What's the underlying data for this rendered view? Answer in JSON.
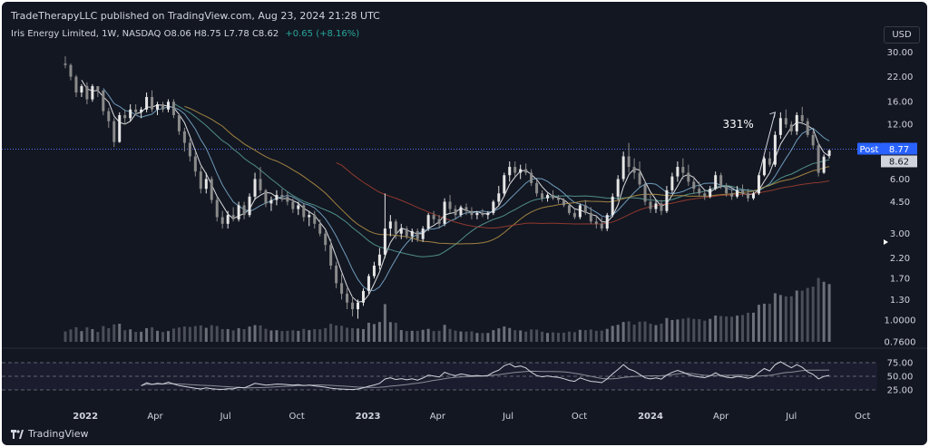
{
  "header": {
    "publisher": "TradeTherapyLLC published on TradingView.com, Aug 23, 2024 21:28 UTC"
  },
  "symbol": {
    "name": "Iris Energy Limited, 1W, NASDAQ",
    "open": "O8.06",
    "high": "H8.75",
    "low": "L7.78",
    "close": "C8.62",
    "change": "+0.65 (+8.16%)"
  },
  "currency_label": "USD",
  "brand_label": "TradingView",
  "colors": {
    "background": "#131722",
    "up": "#e6e6e6",
    "down": "#8a8a8a",
    "ma_fast": "#ffffff",
    "ma_mid": "#7fb3d5",
    "ma_slow": "#5aa39a",
    "ma_gold": "#b89545",
    "ma_red": "#a5402f",
    "post_badge": "#2962ff",
    "rsi_band": "#7e57c2"
  },
  "chart_data": {
    "type": "candlestick",
    "interval": "1W",
    "y_scale": "log",
    "y_ticks": [
      "30.00",
      "22.00",
      "16.00",
      "12.00",
      "8.77",
      "8.62",
      "6.00",
      "4.50",
      "3.00",
      "2.20",
      "1.70",
      "1.30",
      "1.0000",
      "0.7600"
    ],
    "x_ticks": [
      "2022",
      "Apr",
      "Jul",
      "Oct",
      "2023",
      "Apr",
      "Jul",
      "Oct",
      "2024",
      "Apr",
      "Jul",
      "Oct"
    ],
    "last_price": 8.62,
    "post_label": "Post",
    "post_price": "8.77",
    "post_price_value": 8.77,
    "annotation": "331%",
    "annotation_points": [
      {
        "date": "2024-05-20",
        "price": 6.3
      },
      {
        "date": "2024-06-10",
        "price": 14.0
      }
    ],
    "ohlc": [
      {
        "date": "2021-12-06",
        "o": 26.0,
        "h": 28.5,
        "l": 24.5,
        "c": 25.5
      },
      {
        "date": "2021-12-13",
        "o": 25.5,
        "h": 26.0,
        "l": 21.0,
        "c": 22.0
      },
      {
        "date": "2021-12-20",
        "o": 22.0,
        "h": 22.5,
        "l": 17.0,
        "c": 18.0
      },
      {
        "date": "2021-12-27",
        "o": 18.0,
        "h": 20.0,
        "l": 17.0,
        "c": 19.5
      },
      {
        "date": "2022-01-03",
        "o": 19.5,
        "h": 20.5,
        "l": 15.5,
        "c": 16.5
      },
      {
        "date": "2022-01-10",
        "o": 16.5,
        "h": 20.0,
        "l": 16.0,
        "c": 19.5
      },
      {
        "date": "2022-01-17",
        "o": 19.5,
        "h": 19.5,
        "l": 17.0,
        "c": 18.5
      },
      {
        "date": "2022-01-24",
        "o": 18.5,
        "h": 18.5,
        "l": 13.5,
        "c": 14.2
      },
      {
        "date": "2022-01-31",
        "o": 14.2,
        "h": 14.8,
        "l": 11.5,
        "c": 12.5
      },
      {
        "date": "2022-02-07",
        "o": 12.5,
        "h": 13.0,
        "l": 9.0,
        "c": 9.6
      },
      {
        "date": "2022-02-14",
        "o": 9.6,
        "h": 14.0,
        "l": 9.5,
        "c": 13.5
      },
      {
        "date": "2022-02-21",
        "o": 13.5,
        "h": 14.5,
        "l": 12.0,
        "c": 13.0
      },
      {
        "date": "2022-02-28",
        "o": 13.0,
        "h": 15.5,
        "l": 12.5,
        "c": 14.5
      },
      {
        "date": "2022-03-07",
        "o": 14.5,
        "h": 15.5,
        "l": 13.5,
        "c": 14.0
      },
      {
        "date": "2022-03-14",
        "o": 14.0,
        "h": 15.0,
        "l": 13.0,
        "c": 14.5
      },
      {
        "date": "2022-03-21",
        "o": 14.5,
        "h": 18.0,
        "l": 14.0,
        "c": 17.0
      },
      {
        "date": "2022-03-28",
        "o": 17.0,
        "h": 18.5,
        "l": 14.0,
        "c": 14.5
      },
      {
        "date": "2022-04-04",
        "o": 14.5,
        "h": 16.0,
        "l": 13.5,
        "c": 15.5
      },
      {
        "date": "2022-04-11",
        "o": 15.5,
        "h": 16.0,
        "l": 14.0,
        "c": 14.5
      },
      {
        "date": "2022-04-18",
        "o": 14.5,
        "h": 16.5,
        "l": 14.0,
        "c": 16.0
      },
      {
        "date": "2022-04-25",
        "o": 16.0,
        "h": 16.5,
        "l": 13.0,
        "c": 13.5
      },
      {
        "date": "2022-05-02",
        "o": 13.5,
        "h": 13.8,
        "l": 10.5,
        "c": 11.0
      },
      {
        "date": "2022-05-09",
        "o": 11.0,
        "h": 11.5,
        "l": 8.5,
        "c": 9.5
      },
      {
        "date": "2022-05-16",
        "o": 9.5,
        "h": 10.0,
        "l": 7.5,
        "c": 8.0
      },
      {
        "date": "2022-05-23",
        "o": 8.0,
        "h": 8.5,
        "l": 6.2,
        "c": 6.6
      },
      {
        "date": "2022-05-30",
        "o": 6.6,
        "h": 7.0,
        "l": 5.0,
        "c": 5.3
      },
      {
        "date": "2022-06-06",
        "o": 5.3,
        "h": 6.5,
        "l": 5.0,
        "c": 6.0
      },
      {
        "date": "2022-06-13",
        "o": 6.0,
        "h": 6.2,
        "l": 4.4,
        "c": 4.6
      },
      {
        "date": "2022-06-20",
        "o": 4.6,
        "h": 4.8,
        "l": 3.5,
        "c": 3.7
      },
      {
        "date": "2022-06-27",
        "o": 3.7,
        "h": 4.0,
        "l": 3.2,
        "c": 3.4
      },
      {
        "date": "2022-07-04",
        "o": 3.4,
        "h": 4.0,
        "l": 3.2,
        "c": 3.8
      },
      {
        "date": "2022-07-11",
        "o": 3.8,
        "h": 4.2,
        "l": 3.5,
        "c": 3.6
      },
      {
        "date": "2022-07-18",
        "o": 3.6,
        "h": 4.5,
        "l": 3.5,
        "c": 4.3
      },
      {
        "date": "2022-07-25",
        "o": 4.3,
        "h": 4.5,
        "l": 3.6,
        "c": 3.8
      },
      {
        "date": "2022-08-01",
        "o": 3.8,
        "h": 5.0,
        "l": 3.7,
        "c": 4.8
      },
      {
        "date": "2022-08-08",
        "o": 4.8,
        "h": 6.5,
        "l": 4.6,
        "c": 6.0
      },
      {
        "date": "2022-08-15",
        "o": 6.0,
        "h": 7.0,
        "l": 5.0,
        "c": 5.2
      },
      {
        "date": "2022-08-22",
        "o": 5.2,
        "h": 5.3,
        "l": 4.2,
        "c": 4.4
      },
      {
        "date": "2022-08-29",
        "o": 4.4,
        "h": 4.8,
        "l": 4.0,
        "c": 4.6
      },
      {
        "date": "2022-09-05",
        "o": 4.6,
        "h": 5.2,
        "l": 4.3,
        "c": 4.9
      },
      {
        "date": "2022-09-12",
        "o": 4.9,
        "h": 5.3,
        "l": 4.5,
        "c": 4.8
      },
      {
        "date": "2022-09-19",
        "o": 4.8,
        "h": 5.1,
        "l": 4.3,
        "c": 4.5
      },
      {
        "date": "2022-09-26",
        "o": 4.5,
        "h": 4.7,
        "l": 3.9,
        "c": 4.1
      },
      {
        "date": "2022-10-03",
        "o": 4.1,
        "h": 4.5,
        "l": 3.8,
        "c": 4.3
      },
      {
        "date": "2022-10-10",
        "o": 4.3,
        "h": 4.4,
        "l": 3.5,
        "c": 3.7
      },
      {
        "date": "2022-10-17",
        "o": 3.7,
        "h": 4.0,
        "l": 3.3,
        "c": 3.8
      },
      {
        "date": "2022-10-24",
        "o": 3.8,
        "h": 4.0,
        "l": 3.2,
        "c": 3.4
      },
      {
        "date": "2022-10-31",
        "o": 3.4,
        "h": 3.6,
        "l": 2.9,
        "c": 3.0
      },
      {
        "date": "2022-11-07",
        "o": 3.0,
        "h": 3.1,
        "l": 2.4,
        "c": 2.6
      },
      {
        "date": "2022-11-14",
        "o": 2.6,
        "h": 2.8,
        "l": 1.9,
        "c": 2.0
      },
      {
        "date": "2022-11-21",
        "o": 2.0,
        "h": 2.1,
        "l": 1.5,
        "c": 1.6
      },
      {
        "date": "2022-11-28",
        "o": 1.6,
        "h": 1.8,
        "l": 1.3,
        "c": 1.4
      },
      {
        "date": "2022-12-05",
        "o": 1.4,
        "h": 1.5,
        "l": 1.15,
        "c": 1.25
      },
      {
        "date": "2022-12-12",
        "o": 1.25,
        "h": 1.35,
        "l": 1.05,
        "c": 1.15
      },
      {
        "date": "2022-12-19",
        "o": 1.15,
        "h": 1.3,
        "l": 1.02,
        "c": 1.25
      },
      {
        "date": "2022-12-26",
        "o": 1.25,
        "h": 1.5,
        "l": 1.2,
        "c": 1.45
      },
      {
        "date": "2023-01-02",
        "o": 1.45,
        "h": 1.8,
        "l": 1.4,
        "c": 1.75
      },
      {
        "date": "2023-01-09",
        "o": 1.75,
        "h": 2.1,
        "l": 1.7,
        "c": 2.0
      },
      {
        "date": "2023-01-16",
        "o": 2.0,
        "h": 2.5,
        "l": 1.9,
        "c": 2.3
      },
      {
        "date": "2023-01-23",
        "o": 2.3,
        "h": 5.0,
        "l": 2.2,
        "c": 3.2
      },
      {
        "date": "2023-01-30",
        "o": 3.2,
        "h": 3.8,
        "l": 2.9,
        "c": 3.5
      },
      {
        "date": "2023-02-06",
        "o": 3.5,
        "h": 3.6,
        "l": 2.8,
        "c": 3.0
      },
      {
        "date": "2023-02-13",
        "o": 3.0,
        "h": 3.4,
        "l": 2.8,
        "c": 3.2
      },
      {
        "date": "2023-02-20",
        "o": 3.2,
        "h": 3.3,
        "l": 2.8,
        "c": 2.9
      },
      {
        "date": "2023-02-27",
        "o": 2.9,
        "h": 3.2,
        "l": 2.7,
        "c": 3.1
      },
      {
        "date": "2023-03-06",
        "o": 3.1,
        "h": 3.2,
        "l": 2.7,
        "c": 2.8
      },
      {
        "date": "2023-03-13",
        "o": 2.8,
        "h": 3.3,
        "l": 2.7,
        "c": 3.2
      },
      {
        "date": "2023-03-20",
        "o": 3.2,
        "h": 3.9,
        "l": 3.1,
        "c": 3.8
      },
      {
        "date": "2023-03-27",
        "o": 3.8,
        "h": 4.0,
        "l": 3.4,
        "c": 3.6
      },
      {
        "date": "2023-04-03",
        "o": 3.6,
        "h": 3.8,
        "l": 3.2,
        "c": 3.4
      },
      {
        "date": "2023-04-10",
        "o": 3.4,
        "h": 4.7,
        "l": 3.3,
        "c": 4.5
      },
      {
        "date": "2023-04-17",
        "o": 4.5,
        "h": 4.9,
        "l": 3.9,
        "c": 4.1
      },
      {
        "date": "2023-04-24",
        "o": 4.1,
        "h": 4.3,
        "l": 3.6,
        "c": 3.8
      },
      {
        "date": "2023-05-01",
        "o": 3.8,
        "h": 4.3,
        "l": 3.7,
        "c": 4.2
      },
      {
        "date": "2023-05-08",
        "o": 4.2,
        "h": 4.4,
        "l": 3.8,
        "c": 4.0
      },
      {
        "date": "2023-05-15",
        "o": 4.0,
        "h": 4.2,
        "l": 3.6,
        "c": 3.8
      },
      {
        "date": "2023-05-22",
        "o": 3.8,
        "h": 4.0,
        "l": 3.6,
        "c": 3.9
      },
      {
        "date": "2023-05-29",
        "o": 3.9,
        "h": 4.1,
        "l": 3.7,
        "c": 3.8
      },
      {
        "date": "2023-06-05",
        "o": 3.8,
        "h": 4.0,
        "l": 3.6,
        "c": 3.9
      },
      {
        "date": "2023-06-12",
        "o": 3.9,
        "h": 4.6,
        "l": 3.8,
        "c": 4.5
      },
      {
        "date": "2023-06-19",
        "o": 4.5,
        "h": 5.5,
        "l": 4.3,
        "c": 5.0
      },
      {
        "date": "2023-06-26",
        "o": 5.0,
        "h": 6.5,
        "l": 4.8,
        "c": 6.3
      },
      {
        "date": "2023-07-03",
        "o": 6.3,
        "h": 7.5,
        "l": 5.8,
        "c": 7.0
      },
      {
        "date": "2023-07-10",
        "o": 7.0,
        "h": 7.5,
        "l": 6.2,
        "c": 6.5
      },
      {
        "date": "2023-07-17",
        "o": 6.5,
        "h": 7.2,
        "l": 6.0,
        "c": 6.8
      },
      {
        "date": "2023-07-24",
        "o": 6.8,
        "h": 7.3,
        "l": 6.3,
        "c": 6.5
      },
      {
        "date": "2023-07-31",
        "o": 6.5,
        "h": 6.8,
        "l": 5.5,
        "c": 5.7
      },
      {
        "date": "2023-08-07",
        "o": 5.7,
        "h": 5.9,
        "l": 4.8,
        "c": 5.0
      },
      {
        "date": "2023-08-14",
        "o": 5.0,
        "h": 5.2,
        "l": 4.5,
        "c": 4.7
      },
      {
        "date": "2023-08-21",
        "o": 4.7,
        "h": 5.0,
        "l": 4.5,
        "c": 4.9
      },
      {
        "date": "2023-08-28",
        "o": 4.9,
        "h": 5.2,
        "l": 4.6,
        "c": 4.7
      },
      {
        "date": "2023-09-04",
        "o": 4.7,
        "h": 4.9,
        "l": 4.4,
        "c": 4.6
      },
      {
        "date": "2023-09-11",
        "o": 4.6,
        "h": 4.7,
        "l": 4.2,
        "c": 4.3
      },
      {
        "date": "2023-09-18",
        "o": 4.3,
        "h": 4.4,
        "l": 3.8,
        "c": 3.9
      },
      {
        "date": "2023-09-25",
        "o": 3.9,
        "h": 4.1,
        "l": 3.6,
        "c": 3.7
      },
      {
        "date": "2023-10-02",
        "o": 3.7,
        "h": 4.4,
        "l": 3.6,
        "c": 4.3
      },
      {
        "date": "2023-10-09",
        "o": 4.3,
        "h": 4.6,
        "l": 3.8,
        "c": 3.9
      },
      {
        "date": "2023-10-16",
        "o": 3.9,
        "h": 4.2,
        "l": 3.4,
        "c": 3.5
      },
      {
        "date": "2023-10-23",
        "o": 3.5,
        "h": 3.8,
        "l": 3.2,
        "c": 3.4
      },
      {
        "date": "2023-10-30",
        "o": 3.4,
        "h": 3.7,
        "l": 3.1,
        "c": 3.2
      },
      {
        "date": "2023-11-06",
        "o": 3.2,
        "h": 3.9,
        "l": 3.1,
        "c": 3.8
      },
      {
        "date": "2023-11-13",
        "o": 3.8,
        "h": 5.0,
        "l": 3.7,
        "c": 4.8
      },
      {
        "date": "2023-11-20",
        "o": 4.8,
        "h": 6.3,
        "l": 4.6,
        "c": 6.0
      },
      {
        "date": "2023-11-27",
        "o": 6.0,
        "h": 8.5,
        "l": 5.8,
        "c": 8.0
      },
      {
        "date": "2023-12-04",
        "o": 8.0,
        "h": 9.5,
        "l": 6.5,
        "c": 7.0
      },
      {
        "date": "2023-12-11",
        "o": 7.0,
        "h": 7.8,
        "l": 6.0,
        "c": 6.5
      },
      {
        "date": "2023-12-18",
        "o": 6.5,
        "h": 7.5,
        "l": 5.4,
        "c": 5.6
      },
      {
        "date": "2023-12-25",
        "o": 5.6,
        "h": 5.9,
        "l": 4.3,
        "c": 4.5
      },
      {
        "date": "2024-01-01",
        "o": 4.5,
        "h": 4.9,
        "l": 3.9,
        "c": 4.1
      },
      {
        "date": "2024-01-08",
        "o": 4.1,
        "h": 4.6,
        "l": 3.9,
        "c": 4.4
      },
      {
        "date": "2024-01-15",
        "o": 4.4,
        "h": 4.6,
        "l": 3.8,
        "c": 4.0
      },
      {
        "date": "2024-01-22",
        "o": 4.0,
        "h": 5.5,
        "l": 3.9,
        "c": 5.2
      },
      {
        "date": "2024-01-29",
        "o": 5.2,
        "h": 6.5,
        "l": 5.0,
        "c": 6.2
      },
      {
        "date": "2024-02-05",
        "o": 6.2,
        "h": 7.5,
        "l": 5.8,
        "c": 7.0
      },
      {
        "date": "2024-02-12",
        "o": 7.0,
        "h": 7.8,
        "l": 6.0,
        "c": 6.5
      },
      {
        "date": "2024-02-19",
        "o": 6.5,
        "h": 7.2,
        "l": 5.5,
        "c": 5.8
      },
      {
        "date": "2024-02-26",
        "o": 5.8,
        "h": 6.2,
        "l": 5.0,
        "c": 5.3
      },
      {
        "date": "2024-03-04",
        "o": 5.3,
        "h": 5.8,
        "l": 4.8,
        "c": 5.0
      },
      {
        "date": "2024-03-11",
        "o": 5.0,
        "h": 5.2,
        "l": 4.6,
        "c": 4.8
      },
      {
        "date": "2024-03-18",
        "o": 4.8,
        "h": 5.5,
        "l": 4.7,
        "c": 5.3
      },
      {
        "date": "2024-03-25",
        "o": 5.3,
        "h": 6.6,
        "l": 5.2,
        "c": 6.3
      },
      {
        "date": "2024-04-01",
        "o": 6.3,
        "h": 6.5,
        "l": 5.3,
        "c": 5.5
      },
      {
        "date": "2024-04-08",
        "o": 5.5,
        "h": 5.7,
        "l": 4.8,
        "c": 5.0
      },
      {
        "date": "2024-04-15",
        "o": 5.0,
        "h": 5.3,
        "l": 4.6,
        "c": 4.8
      },
      {
        "date": "2024-04-22",
        "o": 4.8,
        "h": 5.5,
        "l": 4.7,
        "c": 5.2
      },
      {
        "date": "2024-04-29",
        "o": 5.2,
        "h": 5.6,
        "l": 4.8,
        "c": 5.0
      },
      {
        "date": "2024-05-06",
        "o": 5.0,
        "h": 5.3,
        "l": 4.5,
        "c": 4.7
      },
      {
        "date": "2024-05-13",
        "o": 4.7,
        "h": 5.1,
        "l": 4.6,
        "c": 5.0
      },
      {
        "date": "2024-05-20",
        "o": 5.0,
        "h": 6.5,
        "l": 4.9,
        "c": 6.3
      },
      {
        "date": "2024-05-27",
        "o": 6.3,
        "h": 8.0,
        "l": 6.2,
        "c": 7.8
      },
      {
        "date": "2024-06-03",
        "o": 7.8,
        "h": 8.5,
        "l": 7.0,
        "c": 7.2
      },
      {
        "date": "2024-06-10",
        "o": 7.2,
        "h": 11.0,
        "l": 7.0,
        "c": 10.5
      },
      {
        "date": "2024-06-17",
        "o": 10.5,
        "h": 14.0,
        "l": 10.0,
        "c": 13.0
      },
      {
        "date": "2024-06-24",
        "o": 13.0,
        "h": 14.5,
        "l": 11.5,
        "c": 12.0
      },
      {
        "date": "2024-07-01",
        "o": 12.0,
        "h": 12.5,
        "l": 10.5,
        "c": 11.0
      },
      {
        "date": "2024-07-08",
        "o": 11.0,
        "h": 14.0,
        "l": 10.5,
        "c": 13.5
      },
      {
        "date": "2024-07-15",
        "o": 13.5,
        "h": 15.0,
        "l": 12.0,
        "c": 12.5
      },
      {
        "date": "2024-07-22",
        "o": 12.5,
        "h": 13.0,
        "l": 10.2,
        "c": 10.5
      },
      {
        "date": "2024-07-29",
        "o": 10.5,
        "h": 11.0,
        "l": 8.8,
        "c": 9.2
      },
      {
        "date": "2024-08-05",
        "o": 9.2,
        "h": 9.5,
        "l": 6.2,
        "c": 6.5
      },
      {
        "date": "2024-08-12",
        "o": 6.5,
        "h": 8.2,
        "l": 6.4,
        "c": 7.97
      },
      {
        "date": "2024-08-19",
        "o": 8.06,
        "h": 8.75,
        "l": 7.78,
        "c": 8.62
      }
    ],
    "rsi": {
      "levels": [
        75,
        50,
        25
      ],
      "tick_labels": [
        "75.00",
        "50.00",
        "25.00"
      ]
    }
  }
}
